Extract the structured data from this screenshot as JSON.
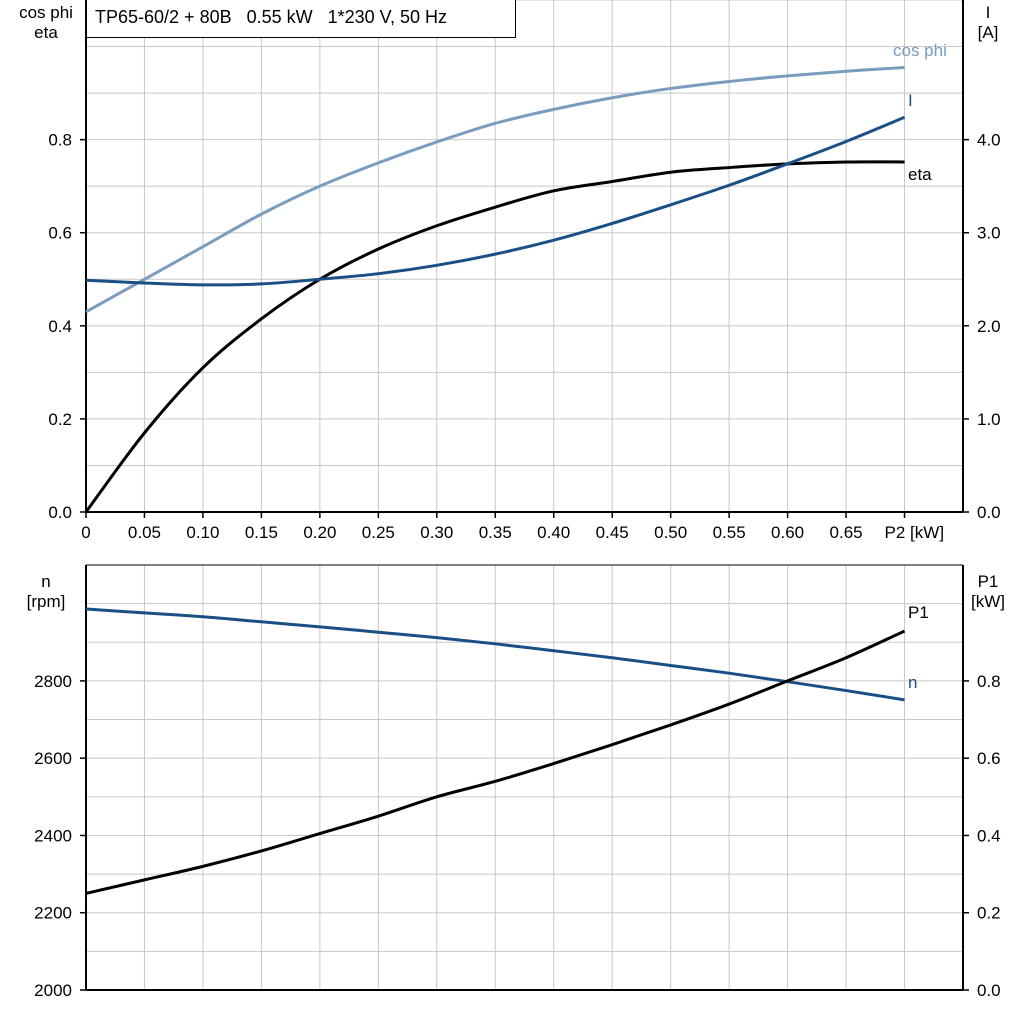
{
  "title": "TP65-60/2 + 80B   0.55 kW   1*230 V, 50 Hz",
  "colors": {
    "cos_phi": "#7a9cbf",
    "current": "#1a4f86",
    "eta": "#000000",
    "n": "#1a4f86",
    "P1": "#000000",
    "grid": "#c8c8c8"
  },
  "chart_data": [
    {
      "type": "line",
      "grid": true,
      "x": [
        0,
        0.05,
        0.1,
        0.15,
        0.2,
        0.25,
        0.3,
        0.35,
        0.4,
        0.45,
        0.5,
        0.55,
        0.6,
        0.65,
        0.7
      ],
      "xlim": [
        0,
        0.75
      ],
      "xticks": [
        "0",
        "0.05",
        "0.10",
        "0.15",
        "0.20",
        "0.25",
        "0.30",
        "0.35",
        "0.40",
        "0.45",
        "0.50",
        "0.55",
        "0.60",
        "0.65"
      ],
      "xlabel": "P2 [kW]",
      "ylabel_left": [
        "cos phi",
        "eta"
      ],
      "ylim_left": [
        0,
        1.1
      ],
      "yticks_left": [
        "0.0",
        "0.2",
        "0.4",
        "0.6",
        "0.8"
      ],
      "ylabel_right": [
        "I",
        "[A]"
      ],
      "ylim_right": [
        0,
        5.5
      ],
      "yticks_right": [
        "0.0",
        "1.0",
        "2.0",
        "3.0",
        "4.0"
      ],
      "series": [
        {
          "name": "cos phi",
          "axis": "left",
          "color": "#7a9cbf",
          "values": [
            0.43,
            0.5,
            0.57,
            0.64,
            0.7,
            0.75,
            0.795,
            0.835,
            0.865,
            0.89,
            0.91,
            0.925,
            0.937,
            0.947,
            0.955
          ]
        },
        {
          "name": "eta",
          "axis": "left",
          "color": "#000000",
          "values": [
            0,
            0.17,
            0.31,
            0.415,
            0.5,
            0.565,
            0.615,
            0.655,
            0.69,
            0.71,
            0.73,
            0.74,
            0.748,
            0.752,
            0.752
          ]
        },
        {
          "name": "I",
          "axis": "right",
          "color": "#1a4f86",
          "values": [
            2.49,
            2.46,
            2.44,
            2.45,
            2.5,
            2.56,
            2.65,
            2.77,
            2.92,
            3.1,
            3.3,
            3.51,
            3.74,
            3.98,
            4.24
          ]
        }
      ]
    },
    {
      "type": "line",
      "grid": true,
      "x": [
        0,
        0.05,
        0.1,
        0.15,
        0.2,
        0.25,
        0.3,
        0.35,
        0.4,
        0.45,
        0.5,
        0.55,
        0.6,
        0.65,
        0.7
      ],
      "xlim": [
        0,
        0.75
      ],
      "ylabel_left": [
        "n",
        "[rpm]"
      ],
      "ylim_left": [
        2000,
        3100
      ],
      "yticks_left": [
        "2000",
        "2200",
        "2400",
        "2600",
        "2800"
      ],
      "ylabel_right": [
        "P1",
        "[kW]"
      ],
      "ylim_right": [
        0,
        1.1
      ],
      "yticks_right": [
        "0.0",
        "0.2",
        "0.4",
        "0.6",
        "0.8"
      ],
      "series": [
        {
          "name": "n",
          "axis": "left",
          "color": "#1a4f86",
          "values": [
            2986,
            2976,
            2966,
            2953,
            2940,
            2926,
            2912,
            2896,
            2878,
            2860,
            2840,
            2820,
            2798,
            2775,
            2751
          ]
        },
        {
          "name": "P1",
          "axis": "right",
          "color": "#000000",
          "values": [
            0.25,
            0.285,
            0.32,
            0.36,
            0.405,
            0.45,
            0.5,
            0.54,
            0.586,
            0.635,
            0.686,
            0.74,
            0.8,
            0.86,
            0.929
          ]
        }
      ]
    }
  ]
}
